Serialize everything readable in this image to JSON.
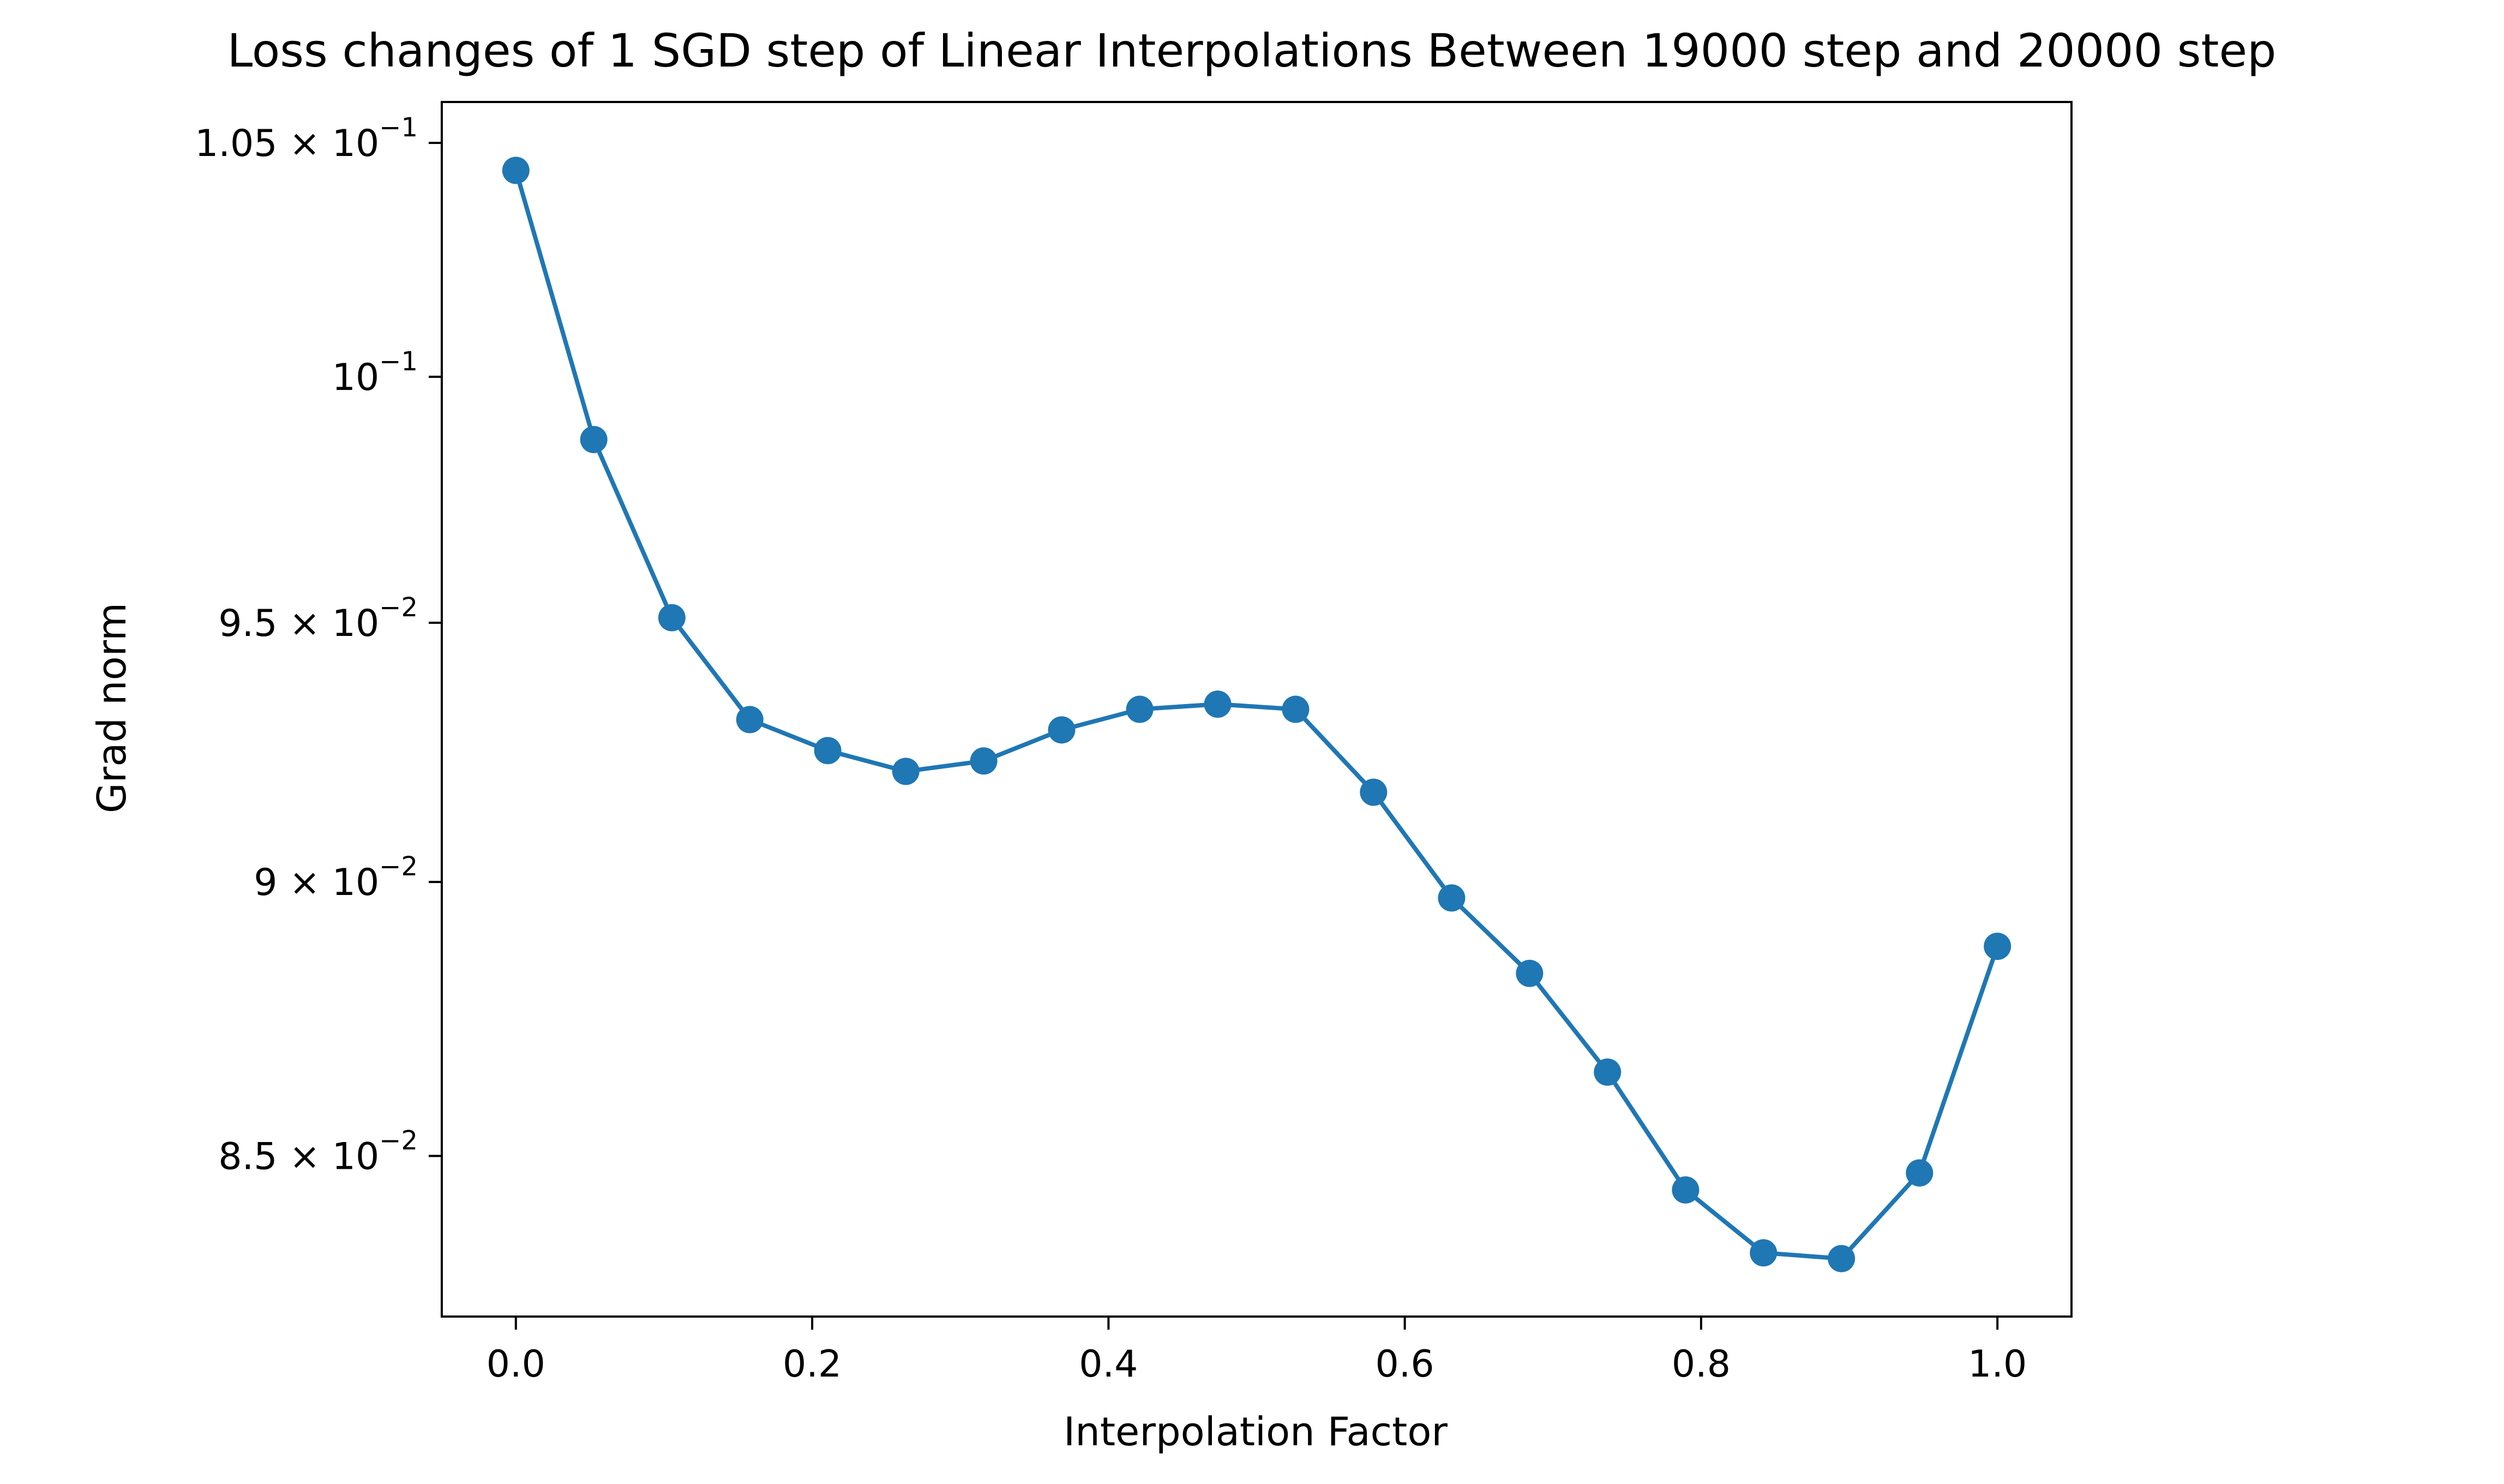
{
  "chart_data": {
    "type": "line",
    "title": "Loss changes of 1 SGD step of Linear Interpolations Between 19000 step and 20000 step",
    "xlabel": "Interpolation Factor",
    "ylabel": "Grad norm",
    "xlim": [
      -0.05,
      1.05
    ],
    "ylim": [
      0.0822,
      0.1059
    ],
    "yscale": "log",
    "grid": false,
    "legend": "none",
    "marker": "circle",
    "color": "#1f77b4",
    "x_ticks": [
      {
        "value": 0.0,
        "label": "0.0"
      },
      {
        "value": 0.2,
        "label": "0.2"
      },
      {
        "value": 0.4,
        "label": "0.4"
      },
      {
        "value": 0.6,
        "label": "0.6"
      },
      {
        "value": 0.8,
        "label": "0.8"
      },
      {
        "value": 1.0,
        "label": "1.0"
      }
    ],
    "y_ticks": [
      {
        "value": 0.105,
        "base": "1.05 × 10",
        "exp": "−1"
      },
      {
        "value": 0.1,
        "base": "10",
        "exp": "−1"
      },
      {
        "value": 0.095,
        "base": "9.5 × 10",
        "exp": "−2"
      },
      {
        "value": 0.09,
        "base": "9 × 10",
        "exp": "−2"
      },
      {
        "value": 0.085,
        "base": "8.5 × 10",
        "exp": "−2"
      }
    ],
    "series": [
      {
        "x": [
          0.0,
          0.0526,
          0.1053,
          0.1579,
          0.2105,
          0.2632,
          0.3158,
          0.3684,
          0.4211,
          0.4737,
          0.5263,
          0.5789,
          0.6316,
          0.6842,
          0.7368,
          0.7895,
          0.8421,
          0.8947,
          0.9474,
          1.0
        ],
        "y": [
          0.1044,
          0.0987,
          0.0951,
          0.0931,
          0.0925,
          0.0921,
          0.0923,
          0.0929,
          0.0933,
          0.0934,
          0.0933,
          0.0917,
          0.0897,
          0.0883,
          0.0865,
          0.0844,
          0.0833,
          0.0832,
          0.0847,
          0.0888
        ]
      }
    ]
  }
}
